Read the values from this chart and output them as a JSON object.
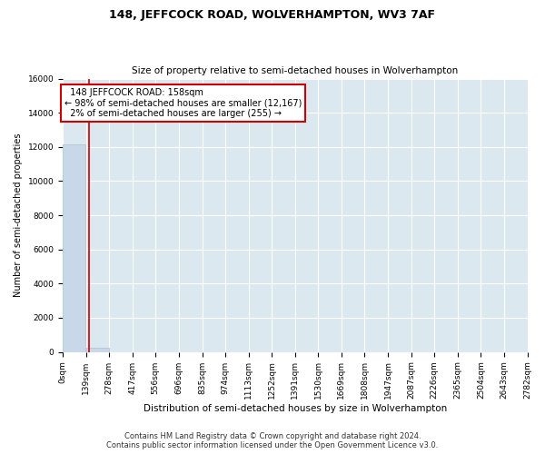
{
  "title": "148, JEFFCOCK ROAD, WOLVERHAMPTON, WV3 7AF",
  "subtitle": "Size of property relative to semi-detached houses in Wolverhampton",
  "xlabel": "Distribution of semi-detached houses by size in Wolverhampton",
  "ylabel": "Number of semi-detached properties",
  "footer_line1": "Contains HM Land Registry data © Crown copyright and database right 2024.",
  "footer_line2": "Contains public sector information licensed under the Open Government Licence v3.0.",
  "bin_edges": [
    0,
    139,
    278,
    417,
    556,
    696,
    835,
    974,
    1113,
    1252,
    1391,
    1530,
    1669,
    1808,
    1947,
    2087,
    2226,
    2365,
    2504,
    2643,
    2782
  ],
  "bin_labels": [
    "0sqm",
    "139sqm",
    "278sqm",
    "417sqm",
    "556sqm",
    "696sqm",
    "835sqm",
    "974sqm",
    "1113sqm",
    "1252sqm",
    "1391sqm",
    "1530sqm",
    "1669sqm",
    "1808sqm",
    "1947sqm",
    "2087sqm",
    "2226sqm",
    "2365sqm",
    "2504sqm",
    "2643sqm",
    "2782sqm"
  ],
  "bar_heights": [
    12167,
    255,
    0,
    0,
    0,
    0,
    0,
    0,
    0,
    0,
    0,
    0,
    0,
    0,
    0,
    0,
    0,
    0,
    0,
    0
  ],
  "bar_color": "#c8d8e8",
  "bar_edgecolor": "#a0b8cc",
  "property_size": 158,
  "property_label": "148 JEFFCOCK ROAD: 158sqm",
  "pct_smaller": 98,
  "n_smaller": 12167,
  "pct_larger": 2,
  "n_larger": 255,
  "vline_color": "#cc0000",
  "annotation_box_color": "#cc0000",
  "ylim": [
    0,
    16000
  ],
  "yticks": [
    0,
    2000,
    4000,
    6000,
    8000,
    10000,
    12000,
    14000,
    16000
  ],
  "background_color": "#dce8f0",
  "fig_background": "#ffffff",
  "grid_color": "#ffffff",
  "title_fontsize": 9,
  "subtitle_fontsize": 7.5,
  "axis_label_fontsize": 7,
  "tick_fontsize": 6.5,
  "annotation_fontsize": 7,
  "footer_fontsize": 6
}
